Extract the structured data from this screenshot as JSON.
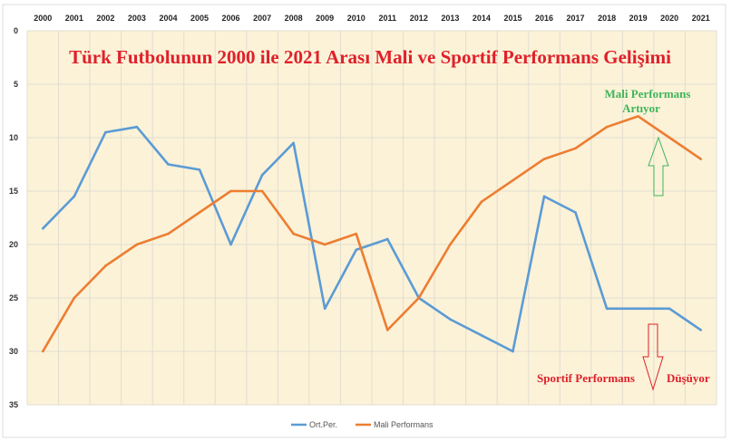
{
  "chart_data": {
    "type": "line",
    "title": "Türk Futbolunun 2000 ile 2021 Arası Mali ve Sportif Performans Gelişimi",
    "x": [
      "2000",
      "2001",
      "2002",
      "2003",
      "2004",
      "2005",
      "2006",
      "2007",
      "2008",
      "2009",
      "2010",
      "2011",
      "2012",
      "2013",
      "2014",
      "2015",
      "2016",
      "2017",
      "2018",
      "2019",
      "2020",
      "2021"
    ],
    "y_ticks": [
      "0",
      "5",
      "10",
      "15",
      "20",
      "25",
      "30",
      "35"
    ],
    "ylim": [
      0,
      35
    ],
    "y_inverted": true,
    "x_axis_position": "top",
    "grid": true,
    "legend_position": "bottom",
    "series": [
      {
        "name": "Ort.Per.",
        "color": "#5b9bd5",
        "values": [
          18.5,
          15.5,
          9.5,
          9,
          12.5,
          13,
          20,
          13.5,
          10.5,
          26,
          20.5,
          19.5,
          25,
          27,
          28.5,
          30,
          15.5,
          17,
          26,
          26,
          26,
          28
        ]
      },
      {
        "name": "Mali Performans",
        "color": "#ed7d31",
        "values": [
          30,
          25,
          22,
          20,
          19,
          17,
          15,
          15,
          19,
          20,
          19,
          28,
          25,
          20,
          16,
          14,
          12,
          11,
          9,
          8,
          10,
          12
        ]
      }
    ],
    "annotations": [
      {
        "text_line1": "Mali Performans",
        "text_line2": "Artıyor",
        "color": "#3fb55a",
        "arrow": "up"
      },
      {
        "text_a": "Sportif Performans",
        "text_b": "Düşüyor",
        "color": "#e0202a",
        "arrow": "down"
      }
    ]
  }
}
